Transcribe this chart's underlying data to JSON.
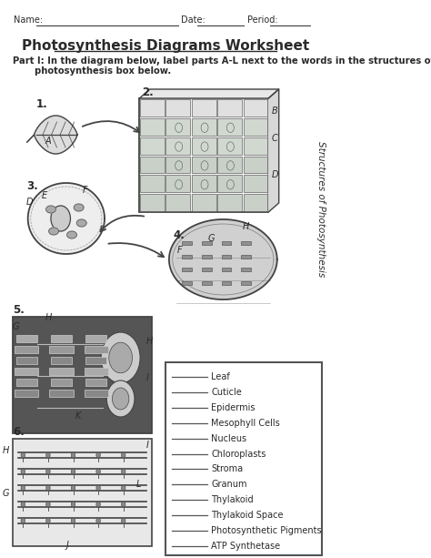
{
  "title": "Photosynthesis Diagrams Worksheet",
  "side_text": "Structures of Photosynthesis",
  "box_labels": [
    "Leaf",
    "Cuticle",
    "Epidermis",
    "Mesophyll Cells",
    "Nucleus",
    "Chloroplasts",
    "Stroma",
    "Granum",
    "Thylakoid",
    "Thylakoid Space",
    "Photosynthetic Pigments",
    "ATP Synthetase"
  ],
  "bg_color": "#ffffff",
  "text_color": "#2a2a2a",
  "dark_color": "#444444",
  "mid_color": "#777777",
  "light_color": "#bbbbbb",
  "lighter_color": "#dddddd",
  "box_edge_color": "#555555"
}
